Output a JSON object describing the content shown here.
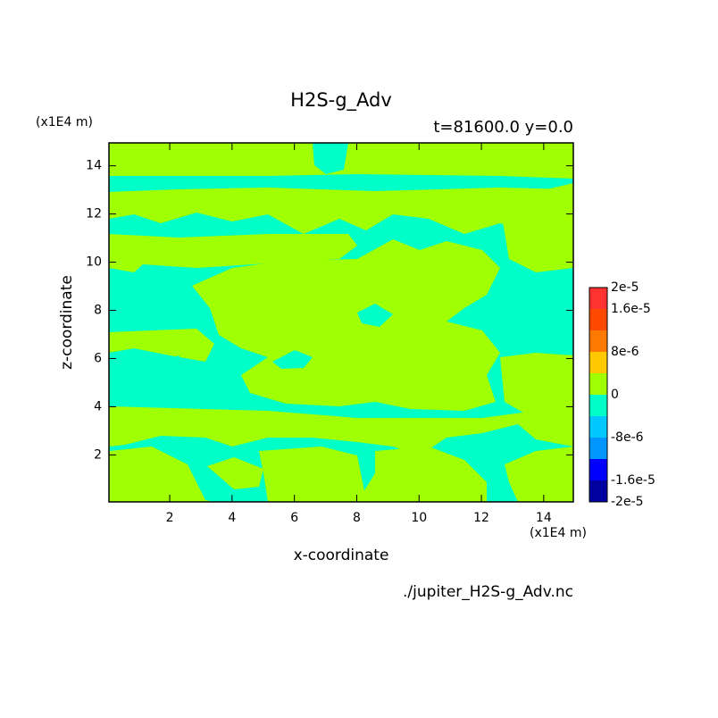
{
  "chart_data": {
    "type": "contour",
    "title": "H2S-g_Adv",
    "subtitle": "t=81600.0 y=0.0",
    "x_label": "x-coordinate",
    "y_label": "z-coordinate",
    "x_unit": "(x1E4 m)",
    "y_unit": "(x1E4 m)",
    "source": "./jupiter_H2S-g_Adv.nc",
    "xlim": [
      0.05,
      14.95
    ],
    "ylim": [
      0.05,
      14.95
    ],
    "xticks": [
      2,
      4,
      6,
      8,
      10,
      12,
      14
    ],
    "yticks": [
      2,
      4,
      6,
      8,
      10,
      12,
      14
    ],
    "levels": [
      -2e-05,
      -1.6e-05,
      -1.2e-05,
      -8e-06,
      -4e-06,
      0,
      4e-06,
      8e-06,
      1.2e-05,
      1.6e-05,
      2e-05
    ],
    "colors": [
      "#0000a0",
      "#0000ff",
      "#0096ff",
      "#00c8ff",
      "#00ffc8",
      "#a0ff00",
      "#ffc800",
      "#ff7800",
      "#ff4800",
      "#ff3232"
    ],
    "colorbar_ticks": [
      {
        "value": 2e-05,
        "label": "2e-5"
      },
      {
        "value": 1.6e-05,
        "label": "1.6e-5"
      },
      {
        "value": 8e-06,
        "label": "8e-6"
      },
      0,
      {
        "value": -8e-06,
        "label": "-8e-6"
      },
      {
        "value": -1.6e-05,
        "label": "-1.6e-5"
      },
      {
        "value": -2e-05,
        "label": "-2e-5"
      }
    ]
  }
}
